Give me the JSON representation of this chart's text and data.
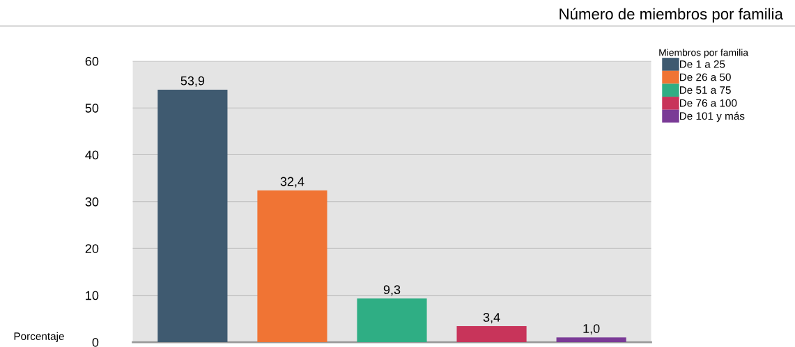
{
  "chart_data": {
    "type": "bar",
    "title": "Número de miembros por familia",
    "ylabel": "Porcentaje",
    "legend_title": "Miembros por familia",
    "categories": [
      null,
      null,
      null,
      null,
      null
    ],
    "series": [
      {
        "name": "De 1 a 25",
        "color": "#3f5a70",
        "values": [
          53.9,
          null,
          null,
          null,
          null
        ],
        "value_labels": [
          "53,9",
          null,
          null,
          null,
          null
        ]
      },
      {
        "name": "De 26 a 50",
        "color": "#f07434",
        "values": [
          null,
          32.4,
          null,
          null,
          null
        ],
        "value_labels": [
          null,
          "32,4",
          null,
          null,
          null
        ]
      },
      {
        "name": "De 51 a 75",
        "color": "#2fae84",
        "values": [
          null,
          null,
          9.3,
          null,
          null
        ],
        "value_labels": [
          null,
          null,
          "9,3",
          null,
          null
        ]
      },
      {
        "name": "De 76 a 100",
        "color": "#c8345a",
        "values": [
          null,
          null,
          null,
          3.4,
          null
        ],
        "value_labels": [
          null,
          null,
          null,
          "3,4",
          null
        ]
      },
      {
        "name": "De 101 y más",
        "color": "#7a3a96",
        "values": [
          null,
          null,
          null,
          null,
          1.0
        ],
        "value_labels": [
          null,
          null,
          null,
          null,
          "1,0"
        ]
      }
    ],
    "ylim": [
      0,
      60
    ],
    "yticks": [
      0,
      10,
      20,
      30,
      40,
      50,
      60
    ],
    "grid": "y",
    "legend": "top right"
  }
}
